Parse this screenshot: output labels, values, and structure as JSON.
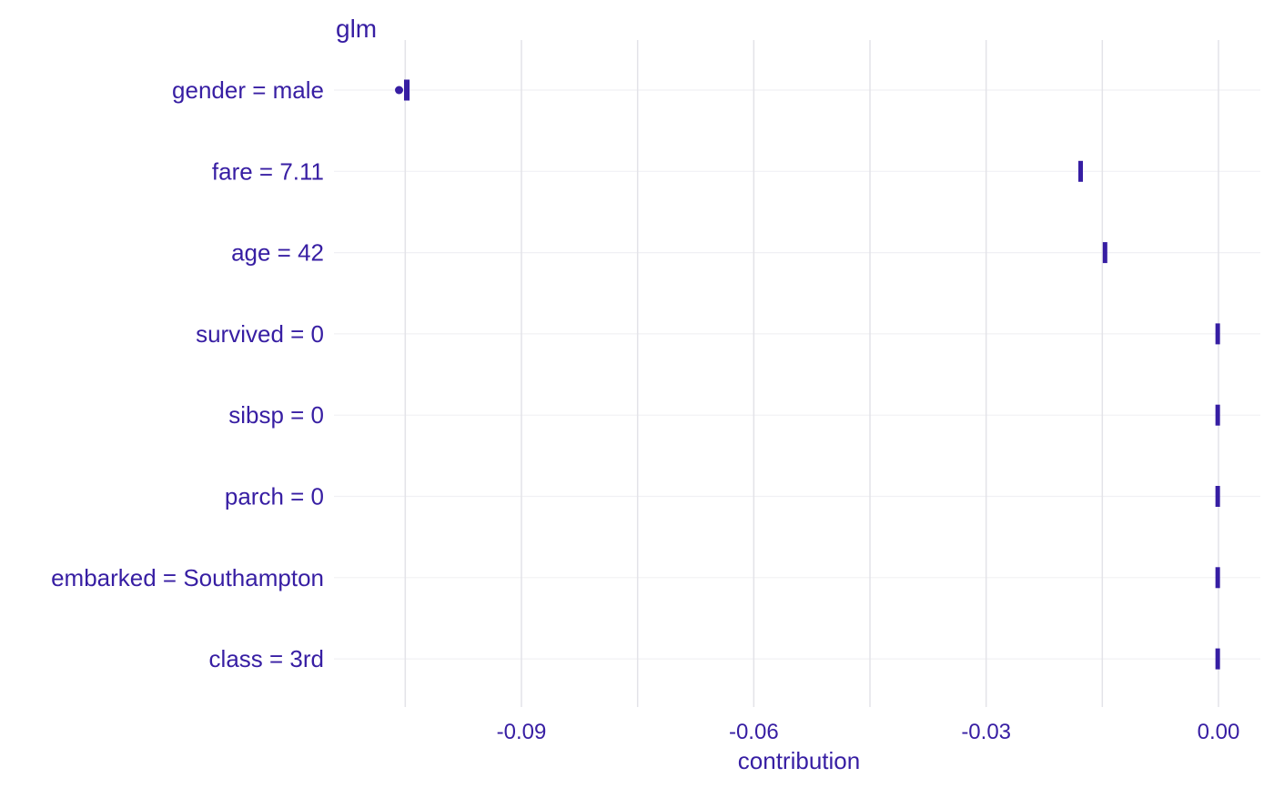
{
  "chart_data": {
    "type": "boxplot",
    "title": "glm",
    "xlabel": "contribution",
    "ylabel": "",
    "xlim": [
      -0.1155,
      0.0035
    ],
    "x_ticks": [
      -0.09,
      -0.06,
      -0.03,
      0.0
    ],
    "x_tick_labels": [
      "-0.09",
      "-0.06",
      "-0.03",
      "0.00"
    ],
    "x_grid_major": [
      -0.09,
      -0.06,
      -0.03,
      0.0
    ],
    "x_grid_minor": [
      -0.105,
      -0.075,
      -0.045,
      -0.015
    ],
    "grid": true,
    "color": "#371ea3",
    "categories": [
      "gender = male",
      "fare = 7.11",
      "age = 42",
      "survived = 0",
      "sibsp = 0",
      "parch = 0",
      "embarked = Southampton",
      "class = 3rd"
    ],
    "boxes": [
      {
        "q1": -0.1051,
        "median": -0.1048,
        "q3": -0.1045,
        "whisker_low": -0.1051,
        "whisker_high": -0.1045,
        "outliers": [
          -0.1058
        ]
      },
      {
        "q1": -0.0179,
        "median": -0.0178,
        "q3": -0.0177,
        "whisker_low": -0.0179,
        "whisker_high": -0.0177,
        "outliers": []
      },
      {
        "q1": -0.0148,
        "median": -0.0147,
        "q3": -0.0145,
        "whisker_low": -0.0148,
        "whisker_high": -0.0145,
        "outliers": []
      },
      {
        "q1": -0.0002,
        "median": -0.0001,
        "q3": 0.0,
        "whisker_low": -0.0002,
        "whisker_high": 0.0,
        "outliers": []
      },
      {
        "q1": -0.0002,
        "median": -0.0001,
        "q3": 0.0,
        "whisker_low": -0.0002,
        "whisker_high": 0.0,
        "outliers": []
      },
      {
        "q1": -0.0002,
        "median": -0.0001,
        "q3": 0.0,
        "whisker_low": -0.0002,
        "whisker_high": 0.0,
        "outliers": []
      },
      {
        "q1": -0.0002,
        "median": -0.0001,
        "q3": 0.0,
        "whisker_low": -0.0002,
        "whisker_high": 0.0,
        "outliers": []
      },
      {
        "q1": -0.0002,
        "median": -0.0001,
        "q3": 0.0,
        "whisker_low": -0.0002,
        "whisker_high": 0.0,
        "outliers": []
      }
    ]
  }
}
